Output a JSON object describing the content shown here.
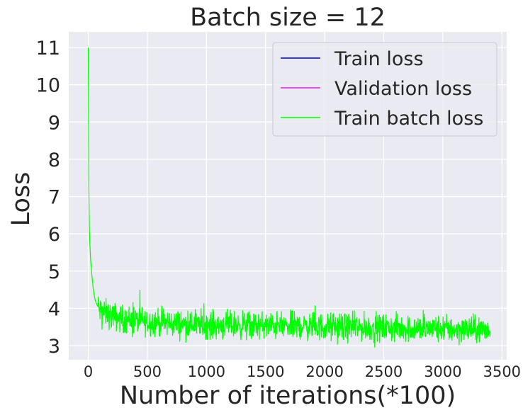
{
  "chart_data": {
    "type": "line",
    "title": "Batch size = 12",
    "xlabel": "Number of iterations(*100)",
    "ylabel": "Loss",
    "xlim": [
      -165,
      3540
    ],
    "ylim": [
      2.62,
      11.42
    ],
    "xticks": [
      0,
      500,
      1000,
      1500,
      2000,
      2500,
      3000,
      3500
    ],
    "yticks": [
      3,
      4,
      5,
      6,
      7,
      8,
      9,
      10,
      11
    ],
    "grid": true,
    "legend_position": "top-right",
    "colors": {
      "background": "#eaeaf2",
      "grid": "#ffffff",
      "train_loss": "#0000cc",
      "validation_loss": "#e619e6",
      "train_batch_loss": "#00ff00"
    },
    "series": [
      {
        "name": "Train loss",
        "color": "#0000cc",
        "x": [],
        "y": []
      },
      {
        "name": "Validation loss",
        "color": "#e619e6",
        "x": [],
        "y": []
      },
      {
        "name": "Train batch loss",
        "color": "#00ff00",
        "x": [
          0,
          5,
          10,
          20,
          30,
          40,
          50,
          60,
          80,
          100,
          130,
          160,
          200,
          250,
          300,
          350,
          400,
          500,
          600,
          700,
          800,
          900,
          1000,
          1200,
          1400,
          1600,
          1800,
          2000,
          2200,
          2400,
          2600,
          2800,
          3000,
          3200,
          3400
        ],
        "y": [
          11.0,
          7.2,
          6.0,
          5.3,
          4.9,
          4.6,
          4.35,
          4.2,
          4.05,
          3.95,
          3.9,
          3.85,
          3.8,
          3.75,
          3.7,
          3.7,
          3.68,
          3.65,
          3.62,
          3.6,
          3.58,
          3.57,
          3.56,
          3.55,
          3.54,
          3.53,
          3.52,
          3.5,
          3.49,
          3.48,
          3.47,
          3.46,
          3.45,
          3.43,
          3.42
        ],
        "noise_amplitude": 0.18
      }
    ]
  }
}
